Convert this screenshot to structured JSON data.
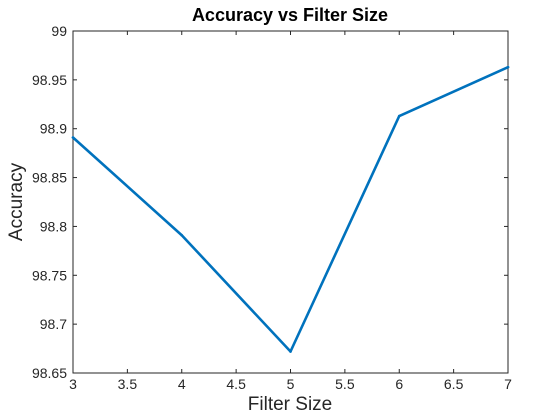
{
  "chart_data": {
    "type": "line",
    "title": "Accuracy vs Filter Size",
    "xlabel": "Filter Size",
    "ylabel": "Accuracy",
    "xlim": [
      3,
      7
    ],
    "ylim": [
      98.65,
      99
    ],
    "xticks": [
      3,
      3.5,
      4,
      4.5,
      5,
      5.5,
      6,
      6.5,
      7
    ],
    "xtick_labels": [
      "3",
      "3.5",
      "4",
      "4.5",
      "5",
      "5.5",
      "6",
      "6.5",
      "7"
    ],
    "yticks": [
      98.65,
      98.7,
      98.75,
      98.8,
      98.85,
      98.9,
      98.95,
      99
    ],
    "ytick_labels": [
      "98.65",
      "98.7",
      "98.75",
      "98.8",
      "98.85",
      "98.9",
      "98.95",
      "99"
    ],
    "grid": false,
    "series": [
      {
        "x": [
          3,
          4,
          5,
          6,
          7
        ],
        "y": [
          98.891,
          98.791,
          98.672,
          98.913,
          98.963
        ],
        "color": "#0072bd"
      }
    ]
  }
}
